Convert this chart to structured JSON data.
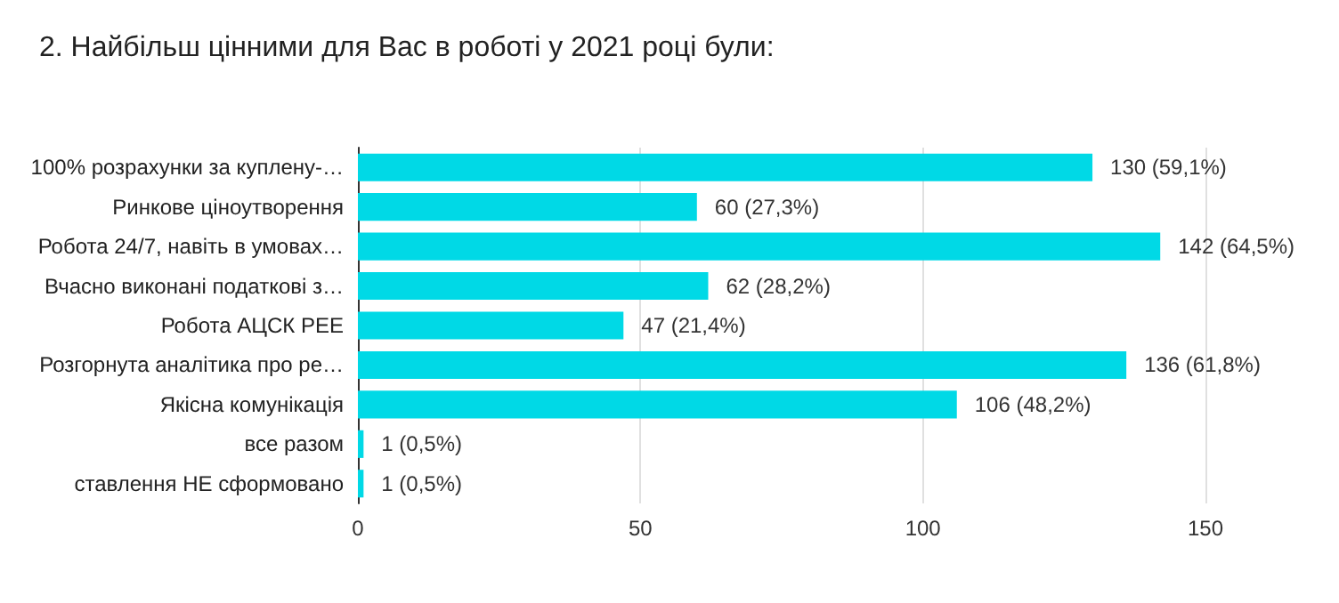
{
  "chart_data": {
    "type": "bar",
    "orientation": "horizontal",
    "title": "2. Найбільш цінними для Вас в роботі у 2021 році були:",
    "categories": [
      "100% розрахунки за куплену-…",
      "Ринкове ціноутворення",
      "Робота 24/7, навіть в умовах…",
      "Вчасно виконані податкові з…",
      "Робота АЦСК РЕЕ",
      "Розгорнута аналітика про ре…",
      "Якісна комунікація",
      "все разом",
      "ставлення НЕ сформовано"
    ],
    "values": [
      130,
      60,
      142,
      62,
      47,
      136,
      106,
      1,
      1
    ],
    "value_labels": [
      "130 (59,1%)",
      "60 (27,3%)",
      "142 (64,5%)",
      "62 (28,2%)",
      "47 (21,4%)",
      "136 (61,8%)",
      "106 (48,2%)",
      "1 (0,5%)",
      "1 (0,5%)"
    ],
    "color": "#00d9e6",
    "xlim": [
      0,
      150
    ],
    "xticks": [
      0,
      50,
      100,
      150
    ],
    "grid": "x"
  }
}
